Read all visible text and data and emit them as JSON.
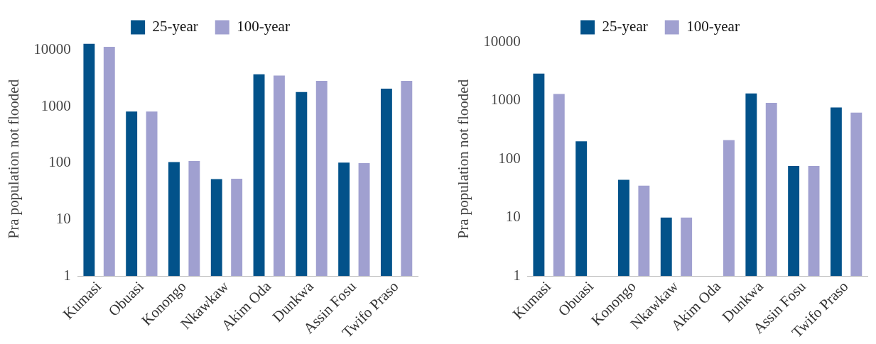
{
  "chart_data": [
    {
      "type": "bar",
      "ylabel": "Pra population not flooded",
      "categories": [
        "Kumasi",
        "Obuasi",
        "Konongo",
        "Nkawkaw",
        "Akim Oda",
        "Dunkwa",
        "Assin Fosu",
        "Twifo Praso"
      ],
      "series": [
        {
          "name": "25-year",
          "color": "#02528a",
          "values": [
            12900,
            820,
            104,
            52,
            3730,
            1810,
            102,
            2080
          ]
        },
        {
          "name": "100-year",
          "color": "#a0a0d0",
          "values": [
            11400,
            820,
            109,
            53,
            3540,
            2850,
            100,
            2850
          ]
        }
      ],
      "log": "y",
      "ylim": [
        1,
        14000
      ],
      "yticks": [
        1,
        10,
        100,
        1000,
        10000
      ],
      "grid": false,
      "legend": "top"
    },
    {
      "type": "bar",
      "ylabel": "Pra population not flooded",
      "categories": [
        "Kumasi",
        "Obuasi",
        "Konongo",
        "Nkawkaw",
        "Akim Oda",
        "Dunkwa",
        "Assin Fosu",
        "Twifo Praso"
      ],
      "series": [
        {
          "name": "25-year",
          "color": "#02528a",
          "values": [
            2870,
            200,
            44,
            10,
            null,
            1310,
            76,
            760
          ]
        },
        {
          "name": "100-year",
          "color": "#a0a0d0",
          "values": [
            1290,
            null,
            35,
            10,
            210,
            910,
            76,
            620
          ]
        }
      ],
      "log": "y",
      "ylim": [
        1,
        10000
      ],
      "yticks": [
        1,
        10,
        100,
        1000,
        10000
      ],
      "grid": false,
      "legend": "top"
    }
  ]
}
